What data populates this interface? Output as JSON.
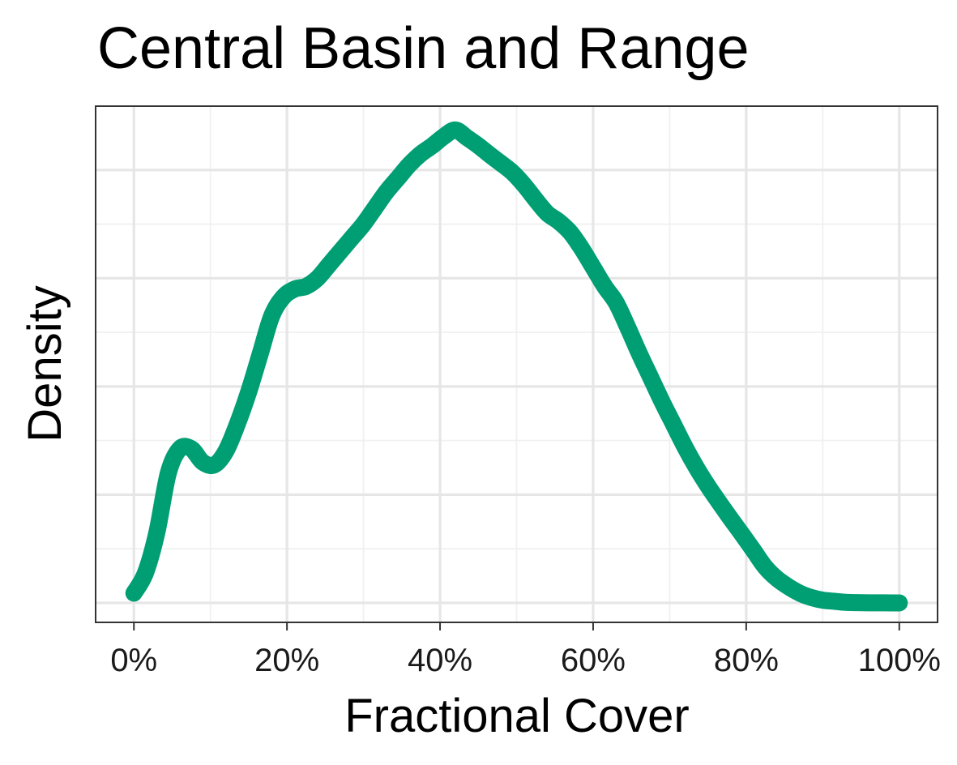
{
  "chart_data": {
    "type": "line",
    "title": "Central Basin and Range",
    "xlabel": "Fractional Cover",
    "ylabel": "Density",
    "xlim": [
      -5,
      105
    ],
    "ylim": [
      -0.036,
      0.918
    ],
    "x_ticks": [
      0,
      20,
      40,
      60,
      80,
      100
    ],
    "x_tick_labels": [
      "0%",
      "20%",
      "40%",
      "60%",
      "80%",
      "100%"
    ],
    "y_major_gridlines": [
      0,
      0.2,
      0.4,
      0.6,
      0.8
    ],
    "y_tick_labels_shown": false,
    "grid": true,
    "series": [
      {
        "color": "#009E73",
        "x": [
          0,
          1.5,
          3,
          4.5,
          6,
          7.5,
          9,
          10.5,
          12,
          13.5,
          15,
          16.5,
          18,
          19.5,
          21,
          22.5,
          24,
          25.5,
          27,
          28.5,
          30,
          31.5,
          33,
          34.5,
          36,
          37.5,
          39,
          40.5,
          42,
          43.5,
          45,
          46.5,
          48,
          49.5,
          51,
          52.5,
          54,
          55.5,
          57,
          58.5,
          60,
          61.5,
          63,
          64.5,
          66,
          67.5,
          69,
          70.5,
          72,
          73.5,
          75,
          76.5,
          78,
          79.5,
          81,
          82.5,
          84,
          85.5,
          87,
          88.5,
          90,
          91.5,
          93,
          94.5,
          96,
          97.5,
          99,
          100
        ],
        "values": [
          0.018,
          0.055,
          0.13,
          0.24,
          0.285,
          0.285,
          0.26,
          0.255,
          0.28,
          0.33,
          0.39,
          0.46,
          0.53,
          0.565,
          0.58,
          0.585,
          0.6,
          0.625,
          0.65,
          0.675,
          0.7,
          0.73,
          0.76,
          0.785,
          0.81,
          0.83,
          0.845,
          0.862,
          0.874,
          0.86,
          0.845,
          0.828,
          0.812,
          0.795,
          0.772,
          0.745,
          0.72,
          0.705,
          0.685,
          0.655,
          0.62,
          0.585,
          0.555,
          0.51,
          0.462,
          0.417,
          0.372,
          0.33,
          0.288,
          0.25,
          0.216,
          0.185,
          0.155,
          0.126,
          0.096,
          0.066,
          0.045,
          0.03,
          0.018,
          0.01,
          0.005,
          0.003,
          0.001,
          0.0005,
          0.0002,
          0.0001,
          0.0,
          0.0
        ]
      }
    ]
  }
}
